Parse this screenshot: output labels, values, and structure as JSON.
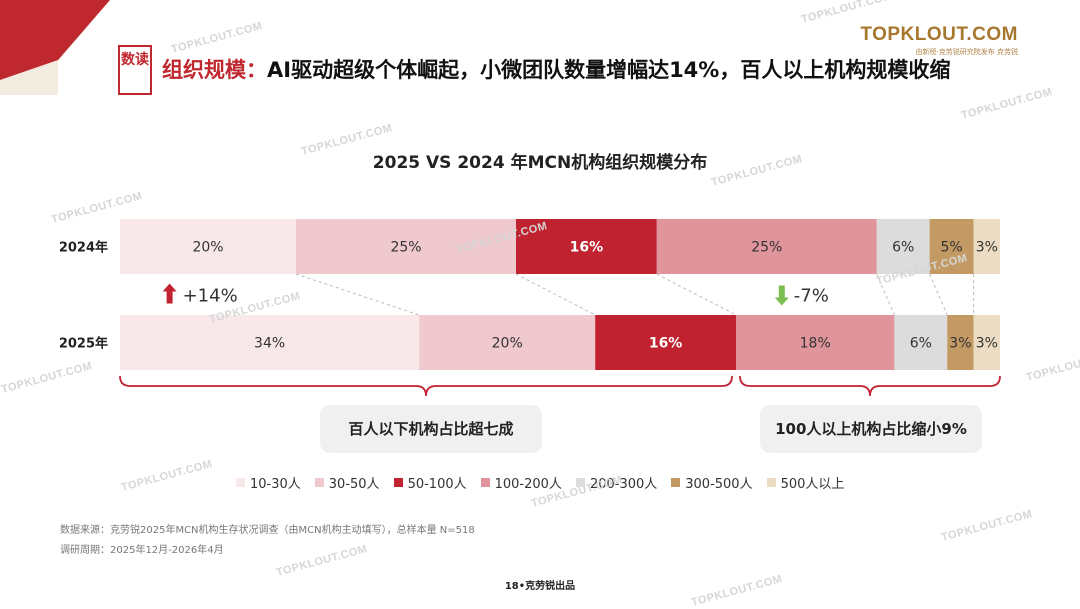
{
  "header": {
    "badge": "数读",
    "title_highlight": "组织规模：",
    "title_rest": "AI驱动超级个体崛起，小微团队数量增幅达14%，百人以上机构规模收缩"
  },
  "brand": {
    "name": "TOPKLOUT.COM",
    "tagline": "由新榜·克劳锐研究院发布",
    "suffix": "克劳锐"
  },
  "watermark": "TOPKLOUT.COM",
  "chart_data": {
    "type": "bar",
    "orientation": "horizontal-stacked-100%",
    "title": "2025 VS 2024 年MCN机构组织规模分布",
    "categories": [
      "2024年",
      "2025年"
    ],
    "series": [
      {
        "name": "10-30人",
        "values": [
          20,
          34
        ],
        "color": "#f8e8ea",
        "label_color": "#333333"
      },
      {
        "name": "30-50人",
        "values": [
          25,
          20
        ],
        "color": "#efc9ce",
        "label_color": "#333333"
      },
      {
        "name": "50-100人",
        "values": [
          16,
          16
        ],
        "color": "#c0222f",
        "label_color": "#ffffff"
      },
      {
        "name": "100-200人",
        "values": [
          25,
          18
        ],
        "color": "#e0959c",
        "label_color": "#333333"
      },
      {
        "name": "200-300人",
        "values": [
          6,
          6
        ],
        "color": "#dcdcdc",
        "label_color": "#333333"
      },
      {
        "name": "300-500人",
        "values": [
          5,
          3
        ],
        "color": "#c49a64",
        "label_color": "#333333"
      },
      {
        "name": "500人以上",
        "values": [
          3,
          3
        ],
        "color": "#ecdcc4",
        "label_color": "#333333"
      }
    ],
    "changes": [
      {
        "text": "+14%",
        "direction": "up",
        "color": "#c0222f"
      },
      {
        "text": "-7%",
        "direction": "down",
        "color": "#7cbd4f"
      }
    ],
    "legend_position": "bottom"
  },
  "callouts": {
    "left": "百人以下机构占比超七成",
    "right": "100人以上机构占比缩小9%"
  },
  "footnotes": {
    "source": "数据来源：克劳锐2025年MCN机构生存状况调查（由MCN机构主动填写），总样本量 N=518",
    "period": "调研周期：2025年12月-2026年4月"
  },
  "page_label": "18•克劳锐出品"
}
